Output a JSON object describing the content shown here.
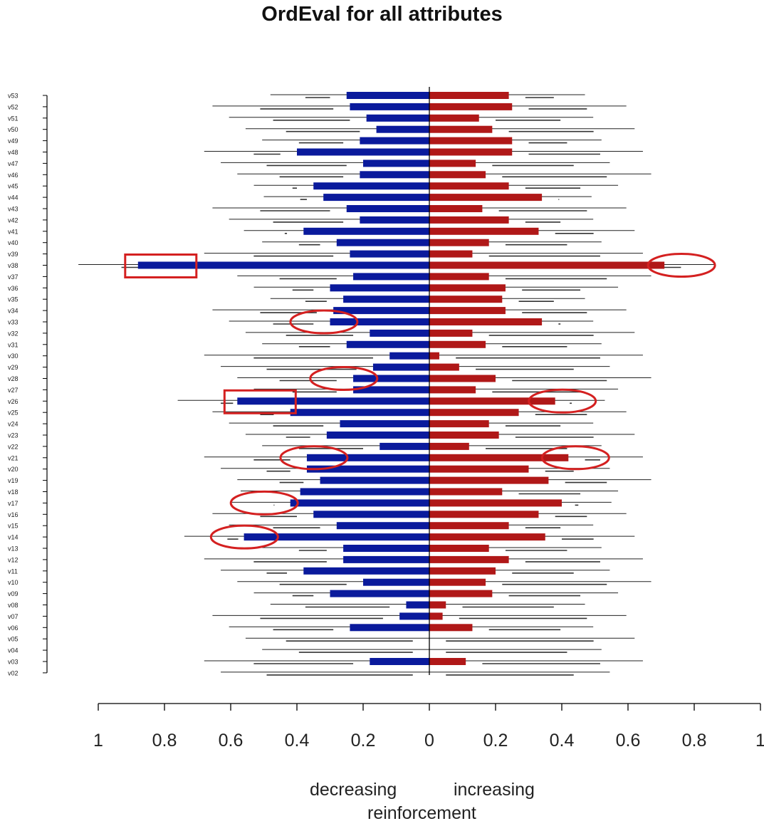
{
  "chart_data": {
    "type": "bar",
    "title": "OrdEval for all attributes",
    "categories": [
      "v53",
      "v52",
      "v51",
      "v50",
      "v49",
      "v48",
      "v47",
      "v46",
      "v45",
      "v44",
      "v43",
      "v42",
      "v41",
      "v40",
      "v39",
      "v38",
      "v37",
      "v36",
      "v35",
      "v34",
      "v33",
      "v32",
      "v31",
      "v30",
      "v29",
      "v28",
      "v27",
      "v26",
      "v25",
      "v24",
      "v23",
      "v22",
      "v21",
      "v20",
      "v19",
      "v18",
      "v17",
      "v16",
      "v15",
      "v14",
      "v13",
      "v12",
      "v11",
      "v10",
      "v09",
      "v08",
      "v07",
      "v06",
      "v05",
      "v04",
      "v03",
      "v02"
    ],
    "series": [
      {
        "name": "decreasing",
        "values": [
          0.25,
          0.24,
          0.19,
          0.16,
          0.21,
          0.4,
          0.2,
          0.21,
          0.35,
          0.32,
          0.25,
          0.21,
          0.38,
          0.28,
          0.24,
          0.88,
          0.23,
          0.3,
          0.26,
          0.29,
          0.3,
          0.18,
          0.25,
          0.12,
          0.17,
          0.23,
          0.23,
          0.58,
          0.42,
          0.27,
          0.31,
          0.15,
          0.37,
          0.37,
          0.33,
          0.39,
          0.42,
          0.35,
          0.28,
          0.56,
          0.26,
          0.26,
          0.38,
          0.2,
          0.3,
          0.07,
          0.09,
          0.24,
          0.0,
          0.0,
          0.18,
          0.0
        ],
        "color": "#0a1a9c"
      },
      {
        "name": "increasing",
        "values": [
          0.24,
          0.25,
          0.15,
          0.19,
          0.25,
          0.25,
          0.14,
          0.17,
          0.24,
          0.34,
          0.16,
          0.24,
          0.33,
          0.18,
          0.13,
          0.71,
          0.18,
          0.23,
          0.22,
          0.23,
          0.34,
          0.13,
          0.17,
          0.03,
          0.09,
          0.2,
          0.14,
          0.38,
          0.27,
          0.18,
          0.21,
          0.12,
          0.42,
          0.3,
          0.36,
          0.22,
          0.4,
          0.33,
          0.24,
          0.35,
          0.18,
          0.24,
          0.2,
          0.17,
          0.19,
          0.05,
          0.04,
          0.13,
          0.0,
          0.0,
          0.11,
          0.0
        ],
        "color": "#b01818"
      }
    ],
    "xlim": [
      -1,
      1
    ],
    "xticks": [
      "1",
      "0.8",
      "0.6",
      "0.4",
      "0.2",
      "0",
      "0.2",
      "0.4",
      "0.6",
      "0.8",
      "1"
    ],
    "xlabel_left": "decreasing",
    "xlabel_right": "increasing",
    "xlabel": "reinforcement",
    "annotation_color": "#d42020"
  }
}
